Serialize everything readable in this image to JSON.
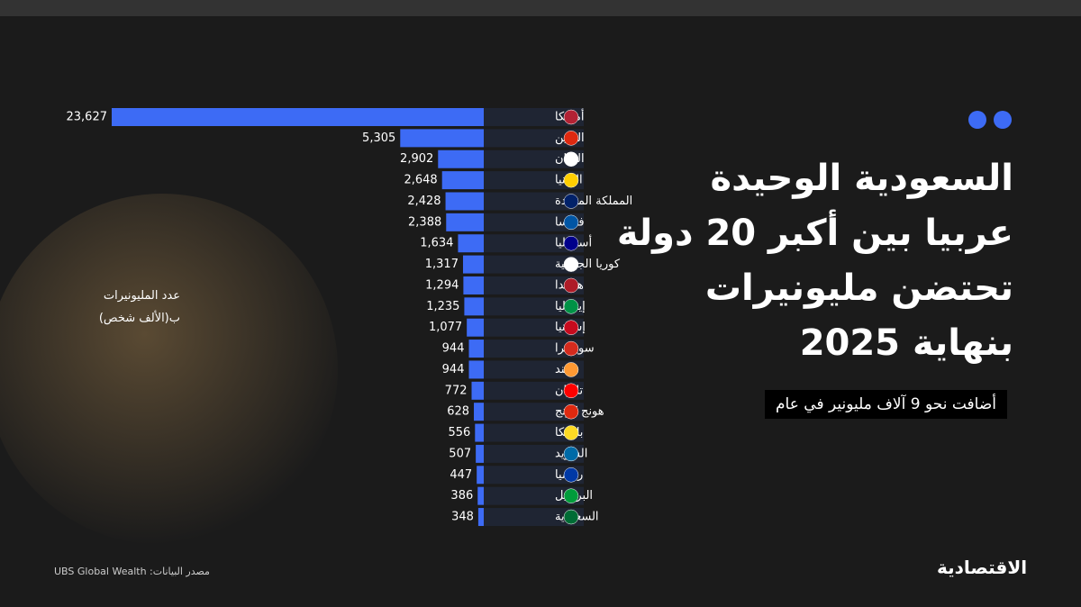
{
  "chart_data": {
    "type": "bar",
    "orientation": "horizontal",
    "title": [
      "السعودية الوحيدة",
      "عربيا بين أكبر 20 دولة",
      "تحتضن مليونيرات",
      "بنهاية 2025"
    ],
    "subtitle": "أضافت نحو 9 آلاف مليونير في عام",
    "axis_label": [
      "عدد المليونيرات",
      "ب(الألف شخص)"
    ],
    "source": "مصدر البيانات: UBS Global Wealth",
    "logo": "الاقتصادية",
    "categories": [
      "أمريكا",
      "الصين",
      "اليابان",
      "المانيا",
      "المملكة المتحدة",
      "فرنسا",
      "أستراليا",
      "كوريا الجنوبية",
      "هولندا",
      "إيطاليا",
      "إسبانيا",
      "سويسرا",
      "الهند",
      "تايوان",
      "هونج كونج",
      "بلجيكا",
      "السويد",
      "روسيا",
      "البرازيل",
      "السعودية"
    ],
    "values": [
      23627,
      5305,
      2902,
      2648,
      2428,
      2388,
      1634,
      1317,
      1294,
      1235,
      1077,
      944,
      944,
      772,
      628,
      556,
      507,
      447,
      386,
      348
    ],
    "value_labels": [
      "23,627",
      "5,305",
      "2,902",
      "2,648",
      "2,428",
      "2,388",
      "1,634",
      "1,317",
      "1,294",
      "1,235",
      "1,077",
      "944",
      "944",
      "772",
      "628",
      "556",
      "507",
      "447",
      "386",
      "348"
    ],
    "color": "#3d6bf5"
  }
}
